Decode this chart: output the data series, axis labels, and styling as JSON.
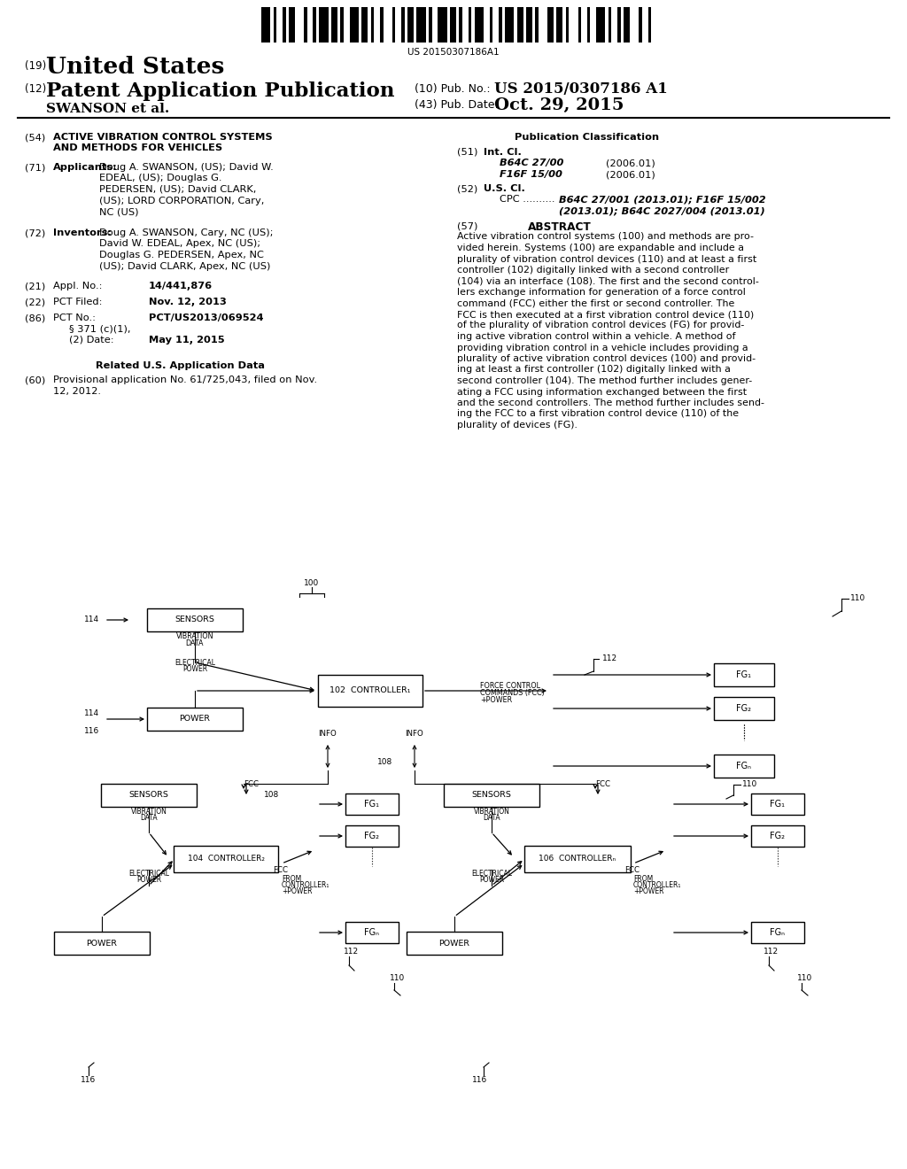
{
  "bg_color": "#ffffff",
  "barcode_text": "US 20150307186A1",
  "title_19": "(19)",
  "title_us": "United States",
  "title_12": "(12)",
  "title_pap": "Patent Application Publication",
  "pub_no_label": "(10) Pub. No.:",
  "pub_no": "US 2015/0307186 A1",
  "pub_date_label": "(43) Pub. Date:",
  "pub_date": "Oct. 29, 2015",
  "inventor_line": "SWANSON et al.",
  "section54_num": "(54)",
  "section54_line1": "ACTIVE VIBRATION CONTROL SYSTEMS",
  "section54_line2": "AND METHODS FOR VEHICLES",
  "section71_num": "(71)",
  "section71_label": "Applicants:",
  "section71_lines": [
    "Doug A. SWANSON, (US); David W.",
    "EDEAL, (US); Douglas G.",
    "PEDERSEN, (US); David CLARK,",
    "(US); LORD CORPORATION, Cary,",
    "NC (US)"
  ],
  "section72_num": "(72)",
  "section72_label": "Inventors: ",
  "section72_lines": [
    "Doug A. SWANSON, Cary, NC (US);",
    "David W. EDEAL, Apex, NC (US);",
    "Douglas G. PEDERSEN, Apex, NC",
    "(US); David CLARK, Apex, NC (US)"
  ],
  "section21_num": "(21)",
  "section21_label": "Appl. No.:   ",
  "section21_val": "14/441,876",
  "section22_num": "(22)",
  "section22_label": "PCT Filed:",
  "section22_val": "Nov. 12, 2013",
  "section86_num": "(86)",
  "section86_label": "PCT No.:",
  "section86_val": "PCT/US2013/069524",
  "section86b1": "§ 371 (c)(1),",
  "section86b2": "(2) Date:",
  "section86b_val": "May 11, 2015",
  "related_title": "Related U.S. Application Data",
  "section60_num": "(60)",
  "section60_lines": [
    "Provisional application No. 61/725,043, filed on Nov.",
    "12, 2012."
  ],
  "pub_class_title": "Publication Classification",
  "section51_num": "(51)",
  "section51_label": "Int. Cl.",
  "section51_vals": [
    [
      "B64C 27/00",
      "(2006.01)"
    ],
    [
      "F16F 15/00",
      "(2006.01)"
    ]
  ],
  "section52_num": "(52)",
  "section52_label": "U.S. Cl.",
  "section52_cpc": "CPC ..........",
  "section52_val1": "B64C 27/001 (2013.01); F16F 15/002",
  "section52_val2": "(2013.01); B64C 2027/004 (2013.01)",
  "section57_num": "(57)",
  "section57_label": "ABSTRACT",
  "abstract_lines": [
    "Active vibration control systems (100) and methods are pro-",
    "vided herein. Systems (100) are expandable and include a",
    "plurality of vibration control devices (110) and at least a first",
    "controller (102) digitally linked with a second controller",
    "(104) via an interface (108). The first and the second control-",
    "lers exchange information for generation of a force control",
    "command (FCC) either the first or second controller. The",
    "FCC is then executed at a first vibration control device (110)",
    "of the plurality of vibration control devices (FG) for provid-",
    "ing active vibration control within a vehicle. A method of",
    "providing vibration control in a vehicle includes providing a",
    "plurality of active vibration control devices (100) and provid-",
    "ing at least a first controller (102) digitally linked with a",
    "second controller (104). The method further includes gener-",
    "ating a FCC using information exchanged between the first",
    "and the second controllers. The method further includes send-",
    "ing the FCC to a first vibration control device (110) of the",
    "plurality of devices (FG)."
  ]
}
